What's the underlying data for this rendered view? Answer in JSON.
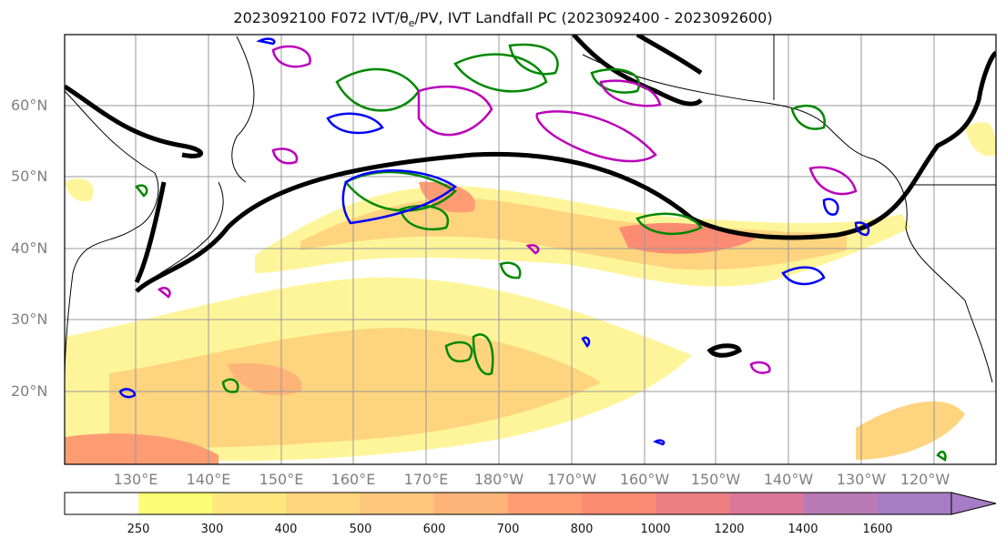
{
  "title": "2023092100 F072 IVT/θe/PV, IVT Landfall PC (2023092400 - 2023092600)",
  "latitude_labels": [
    "60°N",
    "50°N",
    "40°N",
    "30°N",
    "20°N"
  ],
  "longitude_labels": [
    "130°E",
    "140°E",
    "150°E",
    "160°E",
    "170°E",
    "180°W",
    "170°W",
    "160°W",
    "150°W",
    "140°W",
    "130°W",
    "120°W"
  ],
  "colorbar": {
    "ticks": [
      "250",
      "300",
      "400",
      "500",
      "600",
      "700",
      "800",
      "1000",
      "1200",
      "1400",
      "1600"
    ],
    "colors": [
      "#ffffff",
      "#fefb75",
      "#fee77f",
      "#fed47e",
      "#fec77b",
      "#feb479",
      "#fd9c73",
      "#fb8b72",
      "#ec7f82",
      "#da7899",
      "#b97ab6",
      "#a67dc4"
    ]
  },
  "legend_colors": {
    "pc_contour": "#000000",
    "pv_contour": "#0000ff",
    "theta_e_contour": "#bb00bb",
    "ivt_contour": "#008800",
    "grid": "#999999",
    "land": "#000000"
  }
}
